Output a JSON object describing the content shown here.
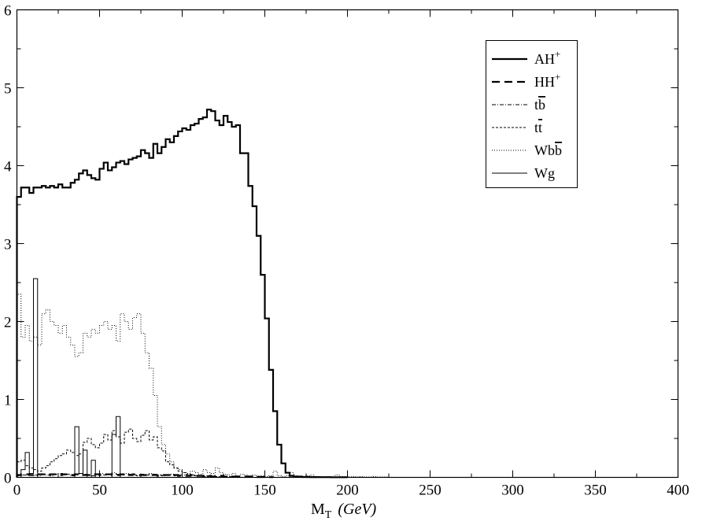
{
  "chart_data": {
    "type": "line",
    "step": true,
    "xlabel": "M",
    "xlabel_sub": "T",
    "xlabel_unit": "(GeV)",
    "ylabel": "",
    "xlim": [
      0,
      400
    ],
    "ylim": [
      0,
      6
    ],
    "xticks": [
      0,
      50,
      100,
      150,
      200,
      250,
      300,
      350,
      400
    ],
    "yticks": [
      0,
      1,
      2,
      3,
      4,
      5,
      6
    ],
    "grid": false,
    "legend_position": "top-right",
    "bin_width": 2.5,
    "series": [
      {
        "name": "AH",
        "name_sup": "+",
        "style": "solid-thick",
        "x0": 0,
        "values": [
          3.6,
          3.72,
          3.72,
          3.65,
          3.72,
          3.72,
          3.74,
          3.72,
          3.74,
          3.72,
          3.76,
          3.72,
          3.72,
          3.78,
          3.82,
          3.9,
          3.94,
          3.88,
          3.84,
          3.82,
          3.96,
          4.04,
          3.94,
          3.98,
          4.04,
          4.06,
          4.02,
          4.08,
          4.1,
          4.12,
          4.2,
          4.16,
          4.1,
          4.28,
          4.16,
          4.24,
          4.34,
          4.3,
          4.38,
          4.44,
          4.48,
          4.46,
          4.52,
          4.54,
          4.6,
          4.62,
          4.72,
          4.7,
          4.58,
          4.52,
          4.64,
          4.56,
          4.5,
          4.52,
          4.16,
          4.16,
          3.74,
          3.48,
          3.1,
          2.6,
          2.04,
          1.38,
          0.85,
          0.42,
          0.18,
          0.06,
          0.02,
          0.01,
          0.01,
          0.005,
          0.005,
          0.004,
          0.004,
          0.003,
          0.003,
          0.003,
          0.002,
          0.002,
          0.002,
          0.002
        ]
      },
      {
        "name": "HH",
        "name_sup": "+",
        "style": "dashed-thick",
        "x0": 0,
        "values": [
          0.03,
          0.04,
          0.04,
          0.03,
          0.04,
          0.04,
          0.04,
          0.03,
          0.04,
          0.04,
          0.03,
          0.04,
          0.04,
          0.03,
          0.04,
          0.04,
          0.03,
          0.03,
          0.04,
          0.04,
          0.03,
          0.04,
          0.04,
          0.03,
          0.03,
          0.04,
          0.03,
          0.03,
          0.04,
          0.03,
          0.03,
          0.03,
          0.03,
          0.03,
          0.02,
          0.03,
          0.03,
          0.02,
          0.03,
          0.02,
          0.02,
          0.02,
          0.03,
          0.02,
          0.02,
          0.02,
          0.02,
          0.01,
          0.02,
          0.02,
          0.01,
          0.01,
          0.01,
          0.01,
          0.01,
          0.01,
          0.01,
          0.005,
          0.005,
          0.005,
          0.004,
          0.003
        ]
      },
      {
        "name": "tb",
        "name_bar": "b",
        "style": "dash-dot",
        "x0": 0,
        "values": [
          0.02,
          0.03,
          0.03,
          0.05,
          0.03,
          0.02,
          0.04,
          0.03,
          0.02,
          0.04,
          0.05,
          0.03,
          0.04,
          0.02,
          0.03,
          0.05,
          0.04,
          0.03,
          0.02,
          0.04,
          0.05,
          0.03,
          0.04,
          0.06,
          0.04,
          0.03,
          0.05,
          0.04,
          0.03,
          0.02,
          0.04,
          0.03,
          0.05,
          0.04,
          0.03,
          0.02,
          0.03,
          0.04,
          0.02,
          0.03,
          0.03,
          0.02,
          0.03,
          0.02,
          0.02,
          0.01,
          0.02,
          0.01,
          0.01,
          0.01,
          0.01,
          0.01,
          0.005,
          0.005
        ]
      },
      {
        "name": "tt",
        "name_bar": "t",
        "style": "dashed-thin",
        "x0": 0,
        "values": [
          0.2,
          0.22,
          0.15,
          0.12,
          0.1,
          0.08,
          0.12,
          0.15,
          0.2,
          0.24,
          0.28,
          0.3,
          0.35,
          0.32,
          0.28,
          0.3,
          0.45,
          0.5,
          0.42,
          0.38,
          0.44,
          0.55,
          0.48,
          0.6,
          0.52,
          0.44,
          0.58,
          0.62,
          0.5,
          0.46,
          0.54,
          0.6,
          0.48,
          0.52,
          0.38,
          0.34,
          0.2,
          0.16,
          0.12,
          0.08,
          0.06,
          0.04,
          0.03,
          0.02,
          0.02,
          0.01,
          0.01,
          0.01,
          0.005,
          0.005
        ]
      },
      {
        "name": "Wbb",
        "name_bar": "b",
        "style": "dotted",
        "x0": 0,
        "values": [
          2.35,
          1.8,
          1.95,
          1.75,
          1.8,
          1.7,
          2.1,
          2.15,
          2.0,
          1.95,
          1.85,
          1.95,
          1.8,
          1.7,
          1.55,
          1.6,
          1.85,
          1.8,
          1.9,
          1.85,
          1.95,
          2.0,
          1.9,
          1.95,
          1.75,
          2.1,
          2.0,
          1.9,
          2.05,
          2.1,
          1.85,
          1.6,
          1.4,
          1.05,
          0.65,
          0.42,
          0.3,
          0.2,
          0.12,
          0.1,
          0.06,
          0.05,
          0.08,
          0.06,
          0.04,
          0.1,
          0.06,
          0.05,
          0.12,
          0.06,
          0.04,
          0.03,
          0.05,
          0.02,
          0.04,
          0.03,
          0.02,
          0.03,
          0.02,
          0.02,
          0.01,
          0.02,
          0.08,
          0.02,
          0.01,
          0.02,
          0.06,
          0.02,
          0.01,
          0.01,
          0.02,
          0.03,
          0.01,
          0.01,
          0.005,
          0.01,
          0.005,
          0.03,
          0.01,
          0.01,
          0.005,
          0.01,
          0.005,
          0.01,
          0.005,
          0.005,
          0.01,
          0.005,
          0.005,
          0.005
        ]
      },
      {
        "name": "Wg",
        "style": "solid-thin",
        "x0": 0,
        "values": [
          0.0,
          0.1,
          0.32,
          0.05,
          2.55,
          0.0,
          0.0,
          0.0,
          0.0,
          0.0,
          0.0,
          0.0,
          0.0,
          0.0,
          0.65,
          0.05,
          0.35,
          0.0,
          0.22,
          0.0,
          0.0,
          0.0,
          0.0,
          0.55,
          0.78,
          0.0,
          0.0,
          0.0,
          0.0,
          0.0,
          0.0,
          0.0,
          0.0,
          0.0,
          0.0,
          0.0,
          0.0,
          0.0,
          0.0,
          0.0,
          0.0,
          0.0,
          0.0,
          0.0,
          0.0,
          0.0,
          0.0,
          0.0,
          0.0,
          0.0,
          0.0,
          0.0,
          0.0,
          0.0,
          0.0,
          0.0
        ]
      }
    ]
  }
}
